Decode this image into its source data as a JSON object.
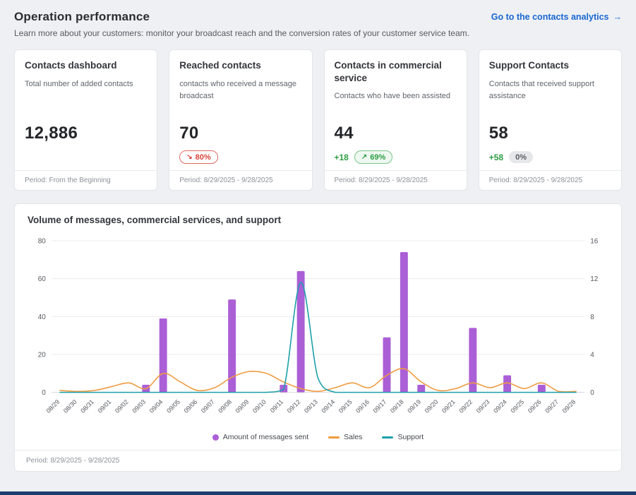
{
  "page": {
    "title": "Operation performance",
    "subtitle": "Learn more about your customers: monitor your broadcast reach and the conversion rates of your customer service team.",
    "analytics_link": "Go to the contacts analytics"
  },
  "icons": {
    "arrow_right": "→",
    "trend_down": "↘",
    "trend_up": "↗"
  },
  "cards": [
    {
      "title": "Contacts dashboard",
      "description": "Total number of added contacts",
      "value": "12,886",
      "period": "Period: From the Beginning"
    },
    {
      "title": "Reached contacts",
      "description": "contacts who received a message broadcast",
      "value": "70",
      "badge": {
        "text": "80%",
        "trend": "down"
      },
      "period": "Period: 8/29/2025 - 9/28/2025"
    },
    {
      "title": "Contacts in commercial service",
      "description": "Contacts who have been assisted",
      "value": "44",
      "delta": "+18",
      "badge": {
        "text": "69%",
        "trend": "up"
      },
      "period": "Period: 8/29/2025 - 9/28/2025"
    },
    {
      "title": "Support Contacts",
      "description": "Contacts that received support assistance",
      "value": "58",
      "delta": "+58",
      "badge": {
        "text": "0%",
        "trend": "neutral"
      },
      "period": "Period: 8/29/2025 - 9/28/2025"
    }
  ],
  "chart": {
    "period": "Period: 8/29/2025 - 9/28/2025"
  },
  "chart_data": {
    "type": "combo",
    "title": "Volume of messages, commercial services, and support",
    "categories": [
      "08/29",
      "08/30",
      "08/31",
      "09/01",
      "09/02",
      "09/03",
      "09/04",
      "09/05",
      "09/06",
      "09/07",
      "09/08",
      "09/09",
      "09/10",
      "09/11",
      "09/12",
      "09/13",
      "09/14",
      "09/15",
      "09/16",
      "09/17",
      "09/18",
      "09/19",
      "09/20",
      "09/21",
      "09/22",
      "09/23",
      "09/24",
      "09/25",
      "09/26",
      "09/27",
      "09/28"
    ],
    "series": [
      {
        "name": "Amount of messages sent",
        "type": "bar",
        "axis": "left",
        "color": "#ab5fd6",
        "values": [
          0,
          0,
          0,
          0,
          0,
          4,
          39,
          0,
          0,
          0,
          49,
          0,
          0,
          4,
          64,
          0,
          0,
          0,
          0,
          29,
          74,
          4,
          0,
          0,
          34,
          0,
          9,
          0,
          4,
          0,
          0
        ]
      },
      {
        "name": "Sales",
        "type": "line",
        "axis": "right",
        "color": "#ef9b40",
        "values": [
          0.2,
          0.1,
          0.2,
          0.6,
          1,
          0.4,
          2,
          1.1,
          0.2,
          0.5,
          1.6,
          2.2,
          2,
          1.1,
          0.4,
          0.1,
          0.5,
          1,
          0.5,
          1.8,
          2.5,
          1.1,
          0.2,
          0.4,
          1,
          0.5,
          1,
          0.4,
          1,
          0.1,
          0.1
        ]
      },
      {
        "name": "Support",
        "type": "line",
        "axis": "right",
        "color": "#1ba0aa",
        "values": [
          0,
          0,
          0,
          0,
          0,
          0,
          0,
          0,
          0,
          0,
          0,
          0,
          0,
          0.3,
          11.6,
          1.5,
          0,
          0,
          0,
          0,
          0,
          0,
          0,
          0,
          0,
          0,
          0,
          0,
          0,
          0,
          0
        ]
      }
    ],
    "left_axis": {
      "min": 0,
      "max": 80,
      "ticks": [
        0,
        20,
        40,
        60,
        80
      ]
    },
    "right_axis": {
      "min": 0,
      "max": 16,
      "ticks": [
        0,
        4,
        8,
        12,
        16
      ]
    },
    "legend_position": "bottom",
    "grid": true
  },
  "colors": {
    "accent_link": "#1966d2",
    "bars": "#ab5fd6",
    "sales": "#ef9b40",
    "support": "#1ba0aa",
    "negative": "#d9453d",
    "positive": "#2e9e44"
  }
}
